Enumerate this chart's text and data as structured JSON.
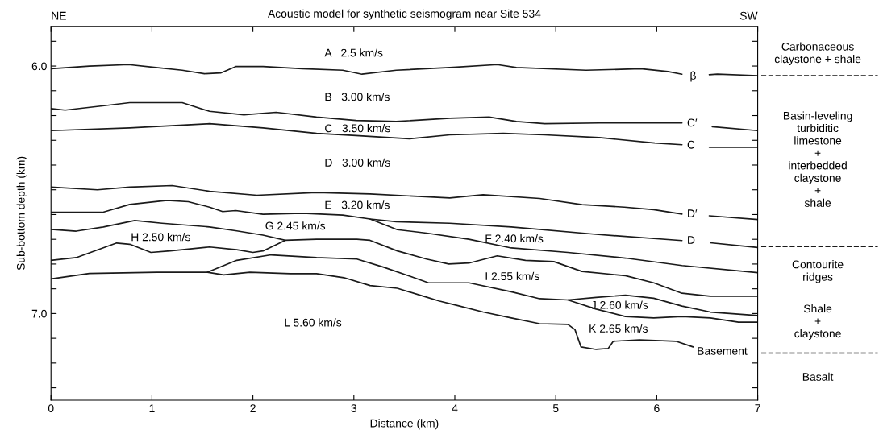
{
  "chart_data": {
    "type": "line",
    "title": "Acoustic model for synthetic seismogram near Site 534",
    "xlabel": "Distance (km)",
    "ylabel": "Sub-bottom depth (km)",
    "xlim": [
      0,
      7
    ],
    "xticks": [
      0,
      1,
      2,
      3,
      4,
      5,
      6,
      7
    ],
    "ylim": [
      7.35,
      5.84
    ],
    "yticks": [
      {
        "value": 5.9,
        "label": null
      },
      {
        "value": 6,
        "label": "6.0"
      },
      {
        "value": 6.1,
        "label": null
      },
      {
        "value": 6.2,
        "label": null
      },
      {
        "value": 6.3,
        "label": null
      },
      {
        "value": 6.4,
        "label": null
      },
      {
        "value": 6.5,
        "label": null
      },
      {
        "value": 6.6,
        "label": null
      },
      {
        "value": 6.7,
        "label": null
      },
      {
        "value": 6.8,
        "label": null
      },
      {
        "value": 6.9,
        "label": null
      },
      {
        "value": 7,
        "label": "7.0"
      },
      {
        "value": 7.1,
        "label": null
      },
      {
        "value": 7.2,
        "label": null
      },
      {
        "value": 7.3,
        "label": null
      }
    ],
    "grid": false,
    "marker": "none",
    "line_style": "solid",
    "series": [
      {
        "color": "#1a1a1a",
        "x": [
          0,
          0.38,
          0.77,
          1.04,
          1.3,
          1.52,
          1.68,
          1.83,
          2.1,
          2.49,
          2.89,
          3.08,
          3.42,
          3.95,
          4.42,
          4.61,
          5.3,
          5.84,
          6.11,
          6.25,
          6.38,
          6.52,
          6.6,
          7.0
        ],
        "values": [
          6.011,
          6.0,
          5.994,
          6.006,
          6.017,
          6.031,
          6.028,
          6.002,
          6.002,
          6.011,
          6.017,
          6.033,
          6.017,
          6.006,
          5.994,
          6.006,
          6.017,
          6.011,
          6.022,
          6.033,
          null,
          6.035,
          6.033,
          6.039
        ]
      },
      {
        "color": "#1a1a1a",
        "x": [
          0,
          0.14,
          0.51,
          0.78,
          1.3,
          1.57,
          1.91,
          2.23,
          2.63,
          3.02,
          3.42,
          3.95,
          4.34,
          4.61,
          4.89,
          5.43,
          6.25,
          6.38,
          6.55,
          7.0
        ],
        "values": [
          6.172,
          6.178,
          6.161,
          6.148,
          6.148,
          6.183,
          6.197,
          6.187,
          6.206,
          6.22,
          6.224,
          6.211,
          6.206,
          6.224,
          6.233,
          6.23,
          6.23,
          null,
          6.245,
          6.261
        ]
      },
      {
        "color": "#1a1a1a",
        "x": [
          0,
          0.78,
          1.57,
          2.1,
          2.63,
          3.02,
          3.55,
          3.95,
          4.48,
          4.89,
          5.43,
          5.98,
          6.25,
          6.38,
          6.52,
          7.0
        ],
        "values": [
          6.261,
          6.25,
          6.233,
          6.25,
          6.272,
          6.281,
          6.294,
          6.278,
          6.272,
          6.278,
          6.289,
          6.311,
          6.318,
          null,
          6.328,
          6.328
        ]
      },
      {
        "color": "#1a1a1a",
        "x": [
          0,
          0.46,
          0.78,
          1.2,
          1.57,
          2.04,
          2.63,
          3.16,
          3.95,
          4.28,
          4.84,
          5.26,
          5.68,
          5.97,
          6.25,
          6.38,
          6.52,
          7.0
        ],
        "values": [
          6.489,
          6.5,
          6.489,
          6.483,
          6.506,
          6.522,
          6.511,
          6.517,
          6.533,
          6.52,
          6.535,
          6.56,
          6.57,
          6.58,
          6.598,
          null,
          6.605,
          6.62
        ]
      },
      {
        "color": "#1a1a1a",
        "x": [
          0,
          0.51,
          0.78,
          1.15,
          1.36,
          1.57,
          1.7,
          1.83,
          2.1,
          2.49,
          2.89,
          3.16,
          3.42,
          3.95,
          4.56,
          5.4,
          6.25,
          6.38,
          6.53,
          7.0
        ],
        "values": [
          6.591,
          6.591,
          6.559,
          6.543,
          6.548,
          6.57,
          6.588,
          6.584,
          6.599,
          6.595,
          6.602,
          6.618,
          6.629,
          6.635,
          6.65,
          6.68,
          6.705,
          null,
          6.714,
          6.733
        ]
      },
      {
        "color": "#1a1a1a",
        "x": [
          3.16,
          3.43,
          3.72,
          4.14,
          4.56,
          5.12,
          5.69,
          6.25,
          7.0
        ],
        "values": [
          6.618,
          6.661,
          6.675,
          6.7,
          6.735,
          6.753,
          6.776,
          6.806,
          6.835
        ]
      },
      {
        "color": "#1a1a1a",
        "x": [
          0,
          0.25,
          0.52,
          0.83,
          1.1,
          1.57,
          1.84,
          2.1,
          2.32,
          2.63,
          3.03,
          3.16,
          3.43,
          3.72,
          3.94,
          4.14,
          4.42,
          4.7,
          4.98,
          5.26,
          5.69,
          5.97,
          6.25,
          6.53,
          7.0
        ],
        "values": [
          6.66,
          6.667,
          6.65,
          6.624,
          6.635,
          6.65,
          6.666,
          6.683,
          6.704,
          6.7,
          6.7,
          6.704,
          6.747,
          6.78,
          6.8,
          6.796,
          6.767,
          6.785,
          6.79,
          6.83,
          6.847,
          6.876,
          6.918,
          6.93,
          6.93
        ]
      },
      {
        "color": "#1a1a1a",
        "x": [
          0,
          0.25,
          0.65,
          0.78,
          0.99,
          1.18,
          1.57,
          1.84,
          2.0,
          2.1,
          2.32
        ],
        "values": [
          6.785,
          6.774,
          6.715,
          6.72,
          6.753,
          6.747,
          6.731,
          6.742,
          6.753,
          6.747,
          6.704
        ]
      },
      {
        "color": "#1a1a1a",
        "x": [
          0,
          0.38,
          1.05,
          1.55,
          1.71,
          1.97,
          2.37,
          2.63,
          2.9,
          3.16,
          3.43,
          3.69,
          3.85,
          4.0,
          4.28,
          4.56,
          4.84,
          5.12,
          5.19,
          5.25,
          5.4,
          5.52,
          5.57,
          5.83,
          6.19,
          6.36
        ],
        "values": [
          6.86,
          6.838,
          6.833,
          6.833,
          6.844,
          6.833,
          6.839,
          6.839,
          6.855,
          6.887,
          6.898,
          6.93,
          6.95,
          6.965,
          6.994,
          7.018,
          7.041,
          7.044,
          7.065,
          7.135,
          7.145,
          7.141,
          7.112,
          7.106,
          7.112,
          7.135
        ]
      },
      {
        "color": "#1a1a1a",
        "x": [
          1.55,
          1.84,
          2.18,
          2.63,
          3.03,
          3.29,
          3.56,
          3.74,
          3.95,
          4.14,
          4.56,
          4.84,
          5.12,
          5.4,
          5.69,
          5.97,
          6.25,
          6.53,
          7.0
        ],
        "values": [
          6.833,
          6.785,
          6.763,
          6.774,
          6.78,
          6.812,
          6.85,
          6.876,
          6.876,
          6.876,
          6.912,
          6.94,
          6.945,
          6.935,
          6.926,
          6.938,
          6.97,
          6.994,
          7.008
        ]
      },
      {
        "color": "#1a1a1a",
        "x": [
          5.12,
          5.4,
          5.69,
          5.97,
          6.25,
          6.53,
          6.81,
          7.0
        ],
        "values": [
          6.945,
          6.982,
          7.012,
          7.018,
          7.012,
          7.018,
          7.035,
          7.035
        ]
      }
    ],
    "annotations": [
      "NE",
      "SW",
      "A   2.5 km/s",
      "B   3.00 km/s",
      "C   3.50 km/s",
      "D   3.00 km/s",
      "E   3.20 km/s",
      "G 2.45 km/s",
      "H 2.50 km/s",
      "F 2.40 km/s",
      "I 2.55 km/s",
      "J 2.60 km/s",
      "K 2.65 km/s",
      "L 5.60 km/s",
      "β",
      "C′",
      "C",
      "D′",
      "D",
      "Basement",
      "Carbonaceous\nclaystone + shale",
      "Basin-leveling\nturbiditic\nlimestone\n+\ninterbedded\nclaystone\n+\nshale",
      "Contourite\nridges",
      "Shale\n+\nclaystone",
      "Basalt"
    ]
  }
}
